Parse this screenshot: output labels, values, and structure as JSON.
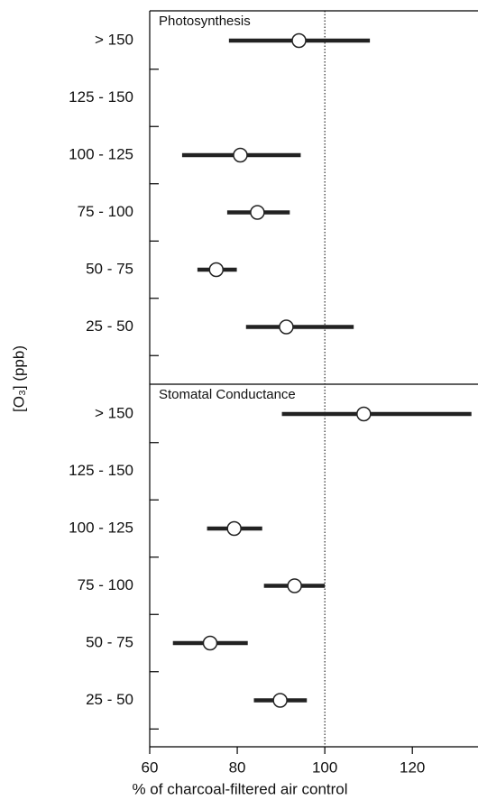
{
  "chart_data": {
    "type": "forest",
    "xlabel": "% of charcoal-filtered air control",
    "ylabel": "[O₃] (ppb)",
    "xlim": [
      60,
      135
    ],
    "xticks": [
      60,
      80,
      100,
      120
    ],
    "reference_line": 100,
    "color": "#222222",
    "panels": [
      {
        "title": "Photosynthesis",
        "categories": [
          "> 150",
          "125 - 150",
          "100 - 125",
          "75 - 100",
          "50 - 75",
          "25 - 50"
        ],
        "values": [
          94.1,
          null,
          80.7,
          84.6,
          75.2,
          91.2
        ],
        "lower": [
          78.1,
          null,
          67.4,
          77.7,
          70.9,
          82.0
        ],
        "upper": [
          110.3,
          null,
          94.5,
          92.0,
          79.9,
          106.6
        ]
      },
      {
        "title": "Stomatal Conductance",
        "categories": [
          "> 150",
          "125 - 150",
          "100 - 125",
          "75 - 100",
          "50 - 75",
          "25 - 50"
        ],
        "values": [
          108.9,
          null,
          79.3,
          93.1,
          73.8,
          89.8
        ],
        "lower": [
          90.2,
          null,
          73.1,
          86.1,
          65.3,
          83.8
        ],
        "upper": [
          133.5,
          null,
          85.7,
          100.0,
          82.4,
          95.9
        ]
      }
    ]
  }
}
